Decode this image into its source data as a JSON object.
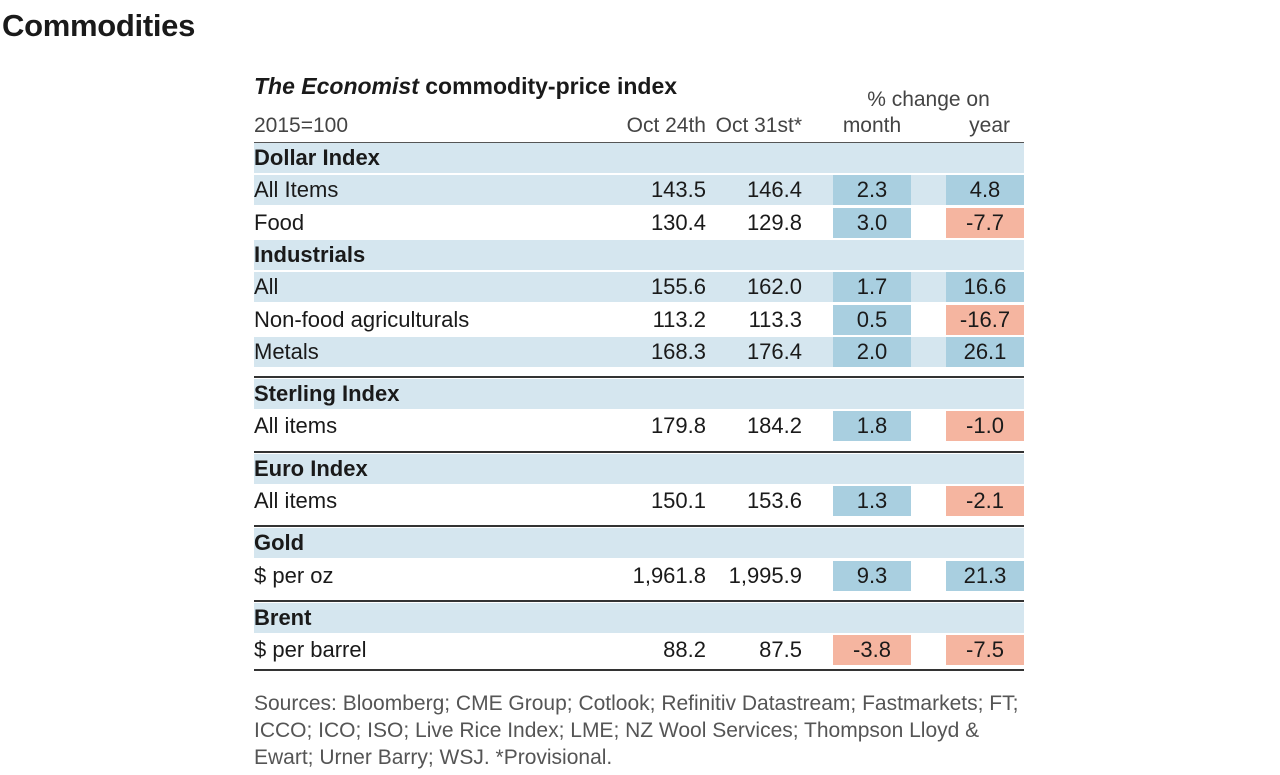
{
  "page_title": "Commodities",
  "table": {
    "title_italic": "The Economist",
    "title_rest": " commodity-price index",
    "pct_change_header": "% change on",
    "columns": {
      "unit": "2015=100",
      "oct24": "Oct 24th",
      "oct31": "Oct 31st*",
      "month": "month",
      "year": "year"
    },
    "sections": [
      {
        "name": "Dollar Index",
        "rows": [
          {
            "label": "All Items",
            "oct24": "143.5",
            "oct31": "146.4",
            "month": "2.3",
            "year": "4.8"
          },
          {
            "label": "Food",
            "oct24": "130.4",
            "oct31": "129.8",
            "month": "3.0",
            "year": "-7.7"
          }
        ]
      },
      {
        "name": "Industrials",
        "rows": [
          {
            "label": "All",
            "oct24": "155.6",
            "oct31": "162.0",
            "month": "1.7",
            "year": "16.6"
          },
          {
            "label": "Non-food agriculturals",
            "oct24": "113.2",
            "oct31": "113.3",
            "month": "0.5",
            "year": "-16.7"
          },
          {
            "label": "Metals",
            "oct24": "168.3",
            "oct31": "176.4",
            "month": "2.0",
            "year": "26.1"
          }
        ]
      },
      {
        "name": "Sterling Index",
        "rows": [
          {
            "label": "All items",
            "oct24": "179.8",
            "oct31": "184.2",
            "month": "1.8",
            "year": "-1.0"
          }
        ]
      },
      {
        "name": "Euro Index",
        "rows": [
          {
            "label": "All items",
            "oct24": "150.1",
            "oct31": "153.6",
            "month": "1.3",
            "year": "-2.1"
          }
        ]
      },
      {
        "name": "Gold",
        "rows": [
          {
            "label": "$ per oz",
            "oct24": "1,961.8",
            "oct31": "1,995.9",
            "month": "9.3",
            "year": "21.3"
          }
        ]
      },
      {
        "name": "Brent",
        "rows": [
          {
            "label": "$ per barrel",
            "oct24": "88.2",
            "oct31": "87.5",
            "month": "-3.8",
            "year": "-7.5"
          }
        ]
      }
    ]
  },
  "sources": "Sources: Bloomberg; CME Group; Cotlook; Refinitiv Datastream; Fastmarkets; FT; ICCO; ICO; ISO; Live Rice Index; LME; NZ Wool Services; Thompson Lloyd & Ewart; Urner Barry; WSJ.  *Provisional.",
  "colors": {
    "row_shade": "#d5e6ef",
    "positive_cell": "#a9cfe0",
    "negative_cell": "#f5b5a0"
  },
  "chart_data": {
    "type": "table",
    "title": "The Economist commodity-price index",
    "columns": [
      "2015=100",
      "Oct 24th",
      "Oct 31st*",
      "% change on month",
      "% change on year"
    ],
    "rows": [
      [
        "Dollar Index: All Items",
        143.5,
        146.4,
        2.3,
        4.8
      ],
      [
        "Dollar Index: Food",
        130.4,
        129.8,
        3.0,
        -7.7
      ],
      [
        "Industrials: All",
        155.6,
        162.0,
        1.7,
        16.6
      ],
      [
        "Industrials: Non-food agriculturals",
        113.2,
        113.3,
        0.5,
        -16.7
      ],
      [
        "Industrials: Metals",
        168.3,
        176.4,
        2.0,
        26.1
      ],
      [
        "Sterling Index: All items",
        179.8,
        184.2,
        1.8,
        -1.0
      ],
      [
        "Euro Index: All items",
        150.1,
        153.6,
        1.3,
        -2.1
      ],
      [
        "Gold: $ per oz",
        1961.8,
        1995.9,
        9.3,
        21.3
      ],
      [
        "Brent: $ per barrel",
        88.2,
        87.5,
        -3.8,
        -7.5
      ]
    ]
  }
}
